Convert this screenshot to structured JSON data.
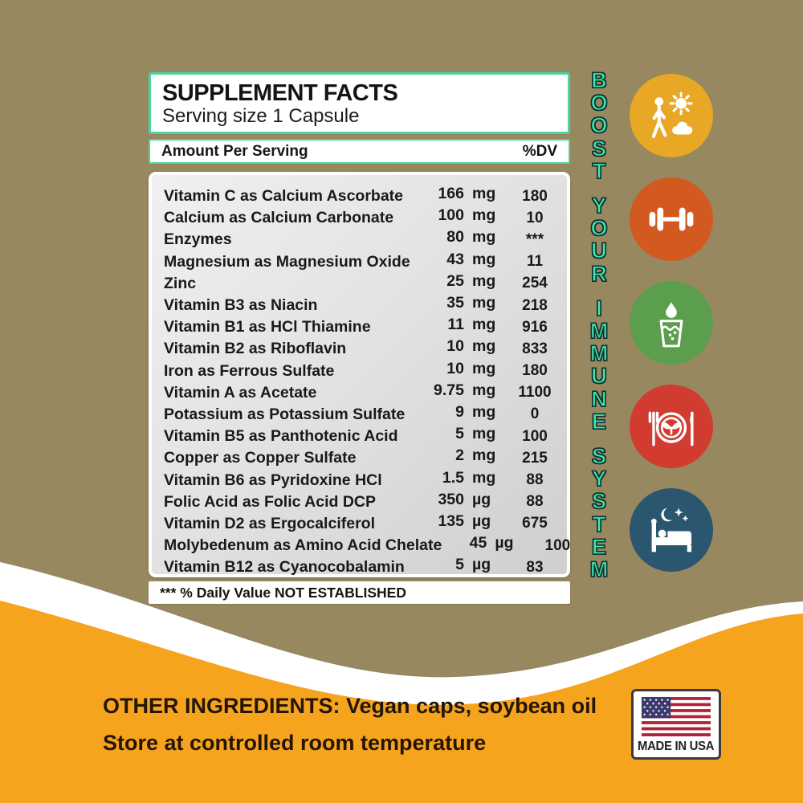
{
  "panel": {
    "title": "SUPPLEMENT FACTS",
    "serving": "Serving size 1 Capsule",
    "amount_header": "Amount Per Serving",
    "dv_header": "%DV",
    "rows": [
      {
        "name": "Vitamin C as Calcium Ascorbate",
        "amount": "166",
        "unit": "mg",
        "dv": "180"
      },
      {
        "name": "Calcium as Calcium Carbonate",
        "amount": "100",
        "unit": "mg",
        "dv": "10"
      },
      {
        "name": "Enzymes",
        "amount": "80",
        "unit": "mg",
        "dv": "***"
      },
      {
        "name": "Magnesium as Magnesium Oxide",
        "amount": "43",
        "unit": "mg",
        "dv": "11"
      },
      {
        "name": "Zinc",
        "amount": "25",
        "unit": "mg",
        "dv": "254"
      },
      {
        "name": "Vitamin B3 as Niacin",
        "amount": "35",
        "unit": "mg",
        "dv": "218"
      },
      {
        "name": "Vitamin B1 as HCl Thiamine",
        "amount": "11",
        "unit": "mg",
        "dv": "916"
      },
      {
        "name": "Vitamin B2 as Riboflavin",
        "amount": "10",
        "unit": "mg",
        "dv": "833"
      },
      {
        "name": "Iron as Ferrous Sulfate",
        "amount": "10",
        "unit": "mg",
        "dv": "180"
      },
      {
        "name": "Vitamin A as Acetate",
        "amount": "9.75",
        "unit": "mg",
        "dv": "1100"
      },
      {
        "name": "Potassium as Potassium Sulfate",
        "amount": "9",
        "unit": "mg",
        "dv": "0"
      },
      {
        "name": "Vitamin B5 as Panthotenic Acid",
        "amount": "5",
        "unit": "mg",
        "dv": "100"
      },
      {
        "name": "Copper as Copper Sulfate",
        "amount": "2",
        "unit": "mg",
        "dv": "215"
      },
      {
        "name": "Vitamin B6  as Pyridoxine HCl",
        "amount": "1.5",
        "unit": "mg",
        "dv": "88"
      },
      {
        "name": "Folic Acid as Folic Acid DCP",
        "amount": "350",
        "unit": "µg",
        "dv": "88"
      },
      {
        "name": "Vitamin D2 as Ergocalciferol",
        "amount": "135",
        "unit": "µg",
        "dv": "675"
      },
      {
        "name": "Molybedenum as Amino Acid Chelate",
        "amount": "45",
        "unit": "µg",
        "dv": "100"
      },
      {
        "name": "Vitamin B12 as Cyanocobalamin",
        "amount": "5",
        "unit": "µg",
        "dv": "83"
      }
    ],
    "footnote": "*** % Daily Value NOT ESTABLISHED"
  },
  "side_text": "BOOST YOUR IMMUNE SYSTEM",
  "side_text_color": "#3DEBA4",
  "icons": [
    {
      "name": "sun-walk-cloud-icon",
      "color": "#E8A826"
    },
    {
      "name": "dumbbell-icon",
      "color": "#D2591F"
    },
    {
      "name": "water-glass-icon",
      "color": "#5B9E4D"
    },
    {
      "name": "healthy-meal-icon",
      "color": "#D23B30"
    },
    {
      "name": "sleep-bed-icon",
      "color": "#2A5670"
    }
  ],
  "bottom": {
    "other_ingredients": "OTHER INGREDIENTS:  Vegan caps, soybean oil",
    "storage": "Store at controlled room temperature",
    "made_in": "MADE IN USA"
  },
  "colors": {
    "background": "#97885F",
    "accent_orange": "#F6A41E",
    "mint_border": "#49D5A1",
    "flag_blue": "#3C3B6E",
    "flag_red": "#B22234"
  }
}
